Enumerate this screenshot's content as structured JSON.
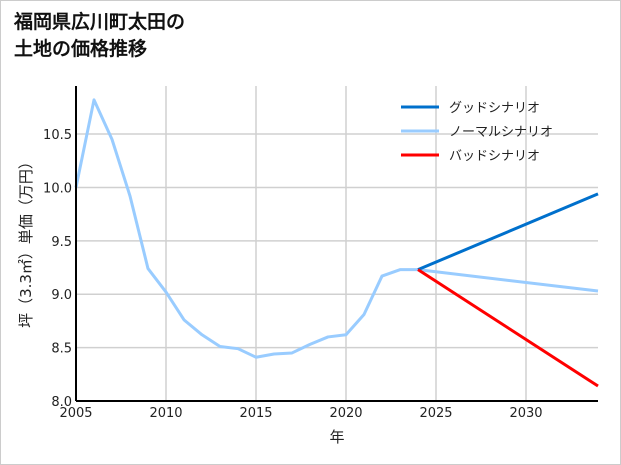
{
  "chart_data": {
    "type": "line",
    "title_lines": [
      "福岡県広川町太田の",
      "土地の価格推移"
    ],
    "xlabel": "年",
    "ylabel": "坪（3.3㎡）単価（万円）",
    "xlim": [
      2005,
      2034
    ],
    "ylim": [
      8.0,
      10.95
    ],
    "xticks": [
      2005,
      2010,
      2015,
      2020,
      2025,
      2030
    ],
    "yticks": [
      8.0,
      8.5,
      9.0,
      9.5,
      10.0,
      10.5
    ],
    "grid": true,
    "legend_position": "top-right",
    "series": [
      {
        "name": "グッドシナリオ",
        "color": "#0070cc",
        "x": [
          2024,
          2034
        ],
        "y": [
          9.23,
          9.94
        ]
      },
      {
        "name": "ノーマルシナリオ",
        "color": "#99ccff",
        "x": [
          2005,
          2006,
          2007,
          2008,
          2009,
          2010,
          2011,
          2012,
          2013,
          2014,
          2015,
          2016,
          2017,
          2018,
          2019,
          2020,
          2021,
          2022,
          2023,
          2024,
          2034
        ],
        "y": [
          10.0,
          10.82,
          10.45,
          9.92,
          9.24,
          9.02,
          8.76,
          8.62,
          8.51,
          8.49,
          8.41,
          8.44,
          8.45,
          8.53,
          8.6,
          8.62,
          8.81,
          9.17,
          9.23,
          9.23,
          9.03
        ]
      },
      {
        "name": "バッドシナリオ",
        "color": "#ff0000",
        "x": [
          2024,
          2034
        ],
        "y": [
          9.23,
          8.14
        ]
      }
    ]
  }
}
